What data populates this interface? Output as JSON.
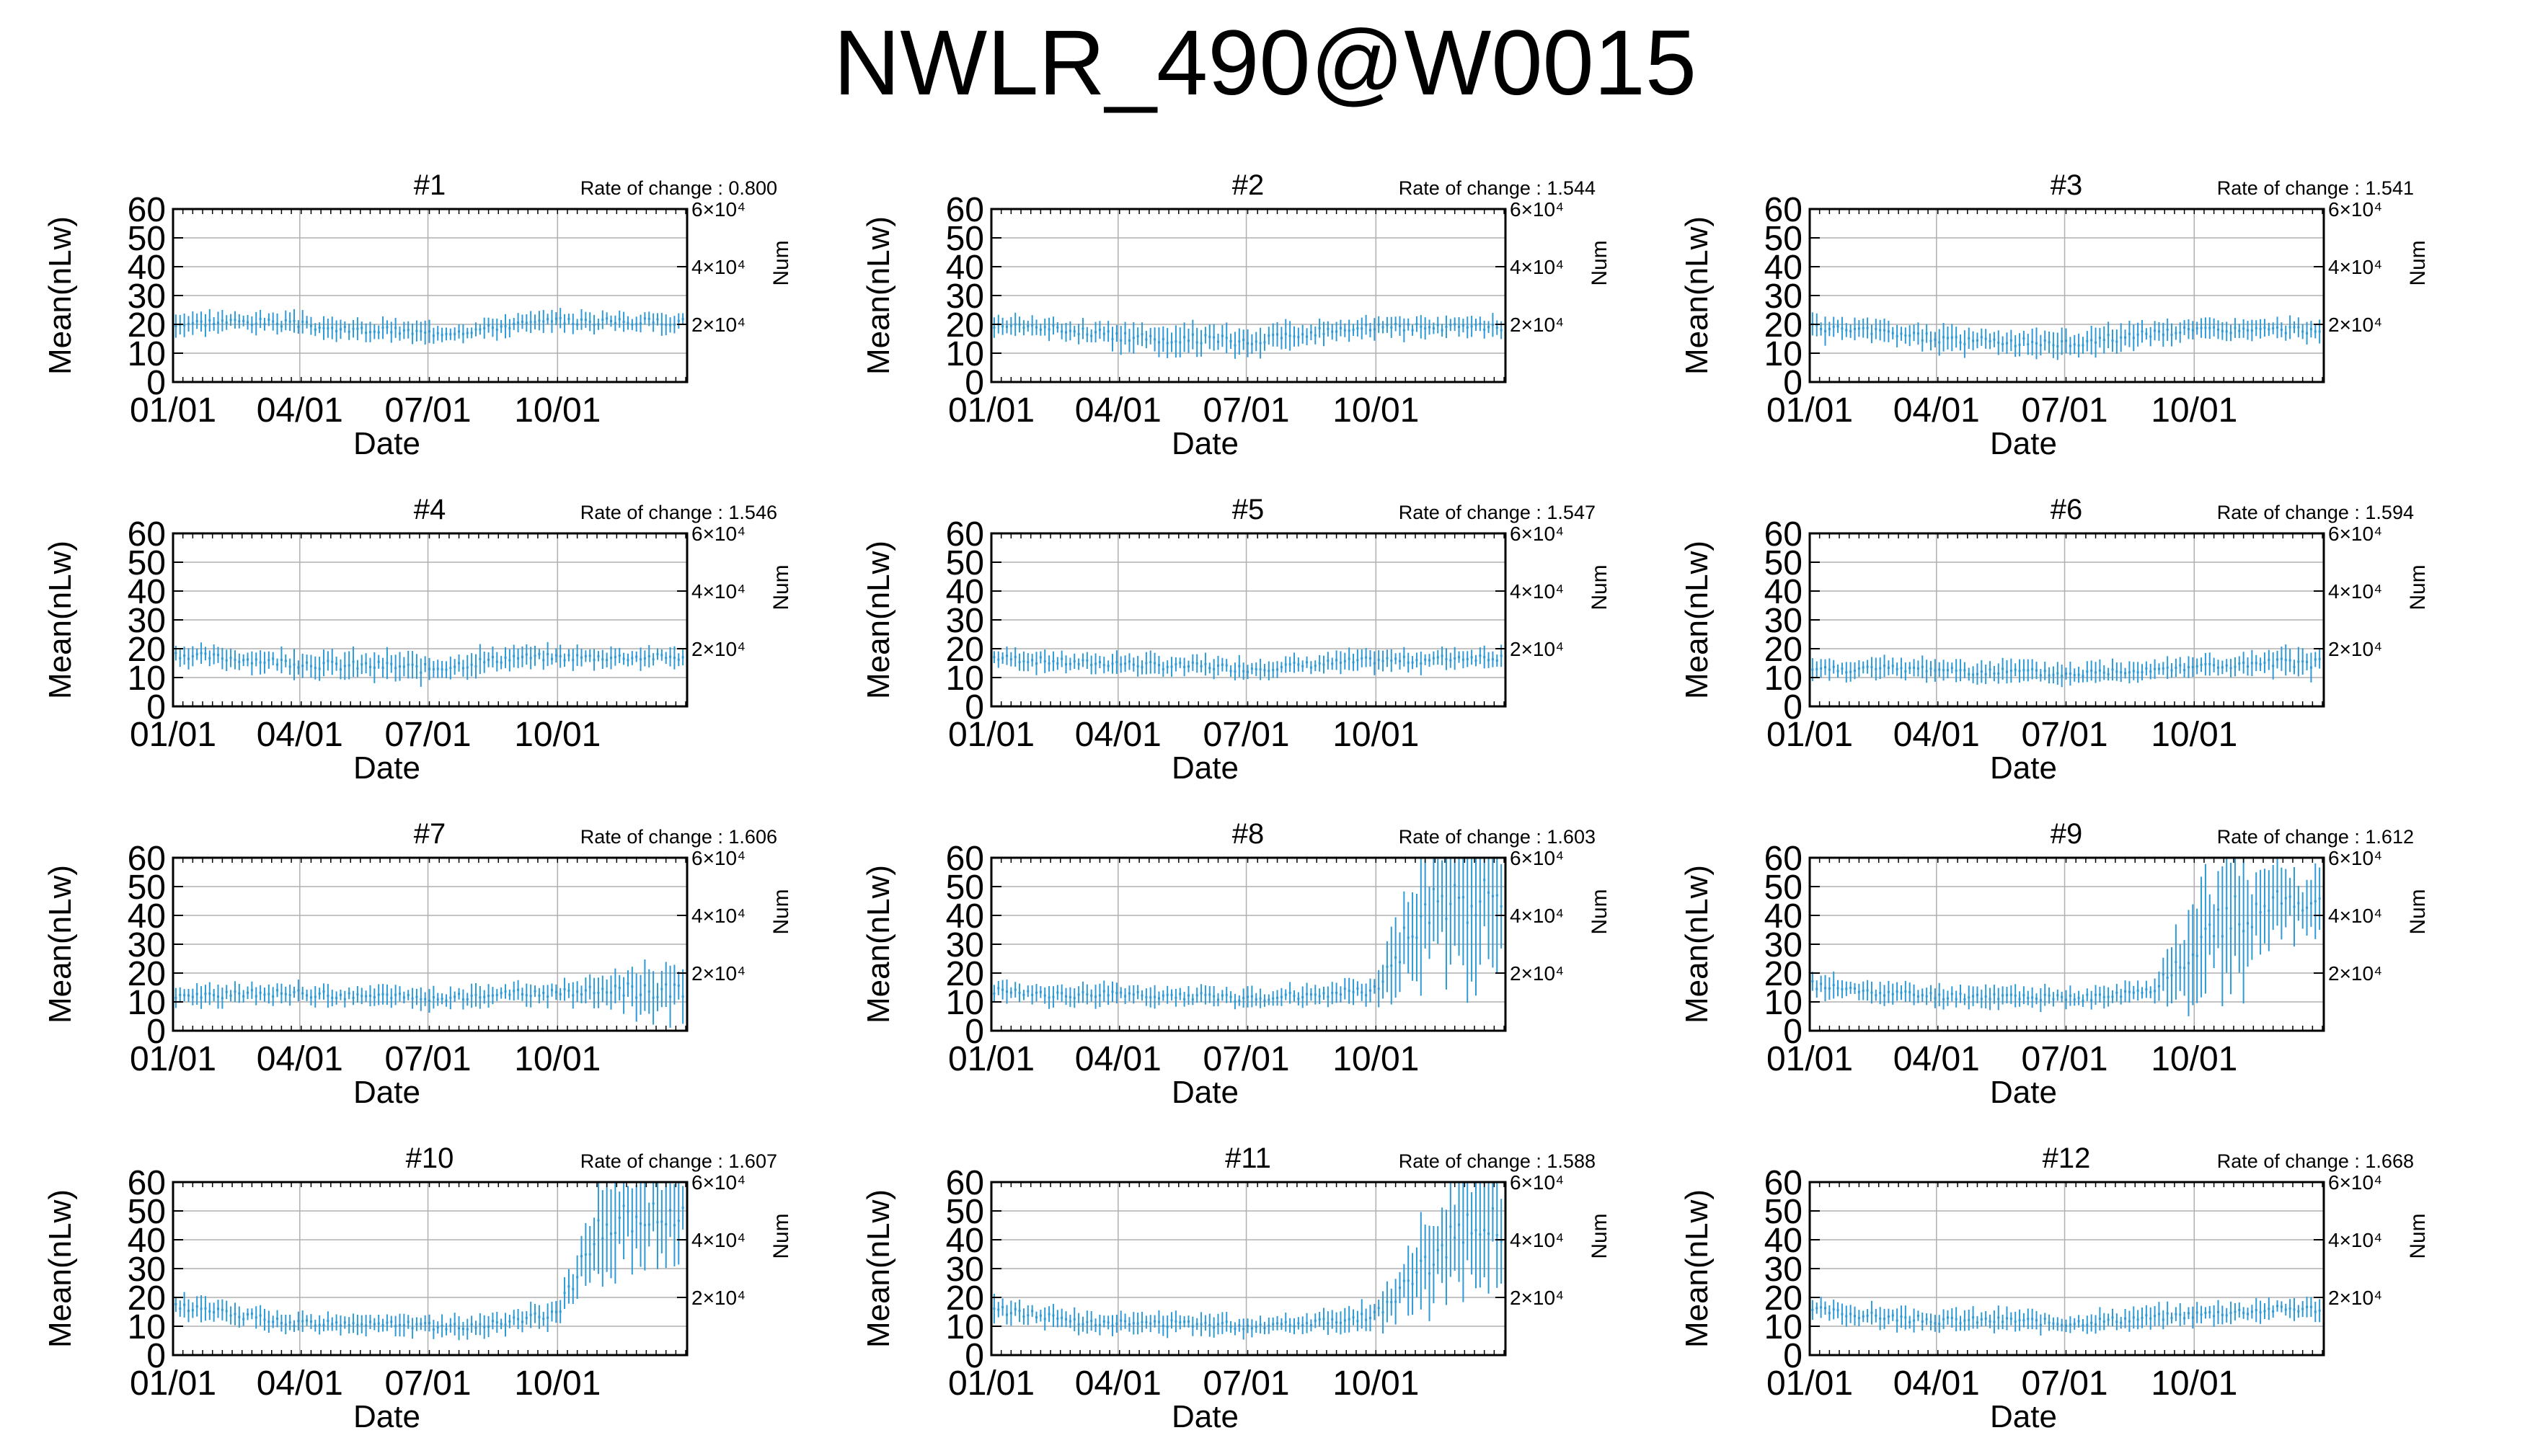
{
  "title": "NWLR_490@W0015",
  "colors": {
    "series": "#2e9ad6",
    "grid": "#b0b0b0",
    "axis": "#000000"
  },
  "chart_data": [
    {
      "type": "scatter",
      "title": "#1",
      "rate_of_change": "Rate of change : 0.800",
      "xlabel": "Date",
      "ylabel": "Mean(nLw)",
      "y2label": "Num",
      "xticks": [
        "01/01",
        "04/01",
        "07/01",
        "10/01"
      ],
      "ylim": [
        0,
        60
      ],
      "yticks": [
        0,
        10,
        20,
        30,
        40,
        50,
        60
      ],
      "y2ticks": [
        "2×10⁴",
        "4×10⁴",
        "6×10⁴"
      ],
      "grid": true,
      "x": [
        "01/01",
        "02/01",
        "03/01",
        "04/01",
        "05/01",
        "06/01",
        "07/01",
        "08/01",
        "09/01",
        "10/01",
        "11/01",
        "12/01"
      ],
      "values": [
        20,
        21,
        21,
        20,
        18,
        18,
        17,
        18,
        20,
        21,
        21,
        21
      ],
      "error": [
        3,
        3,
        3,
        3,
        3,
        3,
        3,
        3,
        3,
        3,
        3,
        3
      ]
    },
    {
      "type": "scatter",
      "title": "#2",
      "rate_of_change": "Rate of change : 1.544",
      "xlabel": "Date",
      "ylabel": "Mean(nLw)",
      "y2label": "Num",
      "xticks": [
        "01/01",
        "04/01",
        "07/01",
        "10/01"
      ],
      "ylim": [
        0,
        60
      ],
      "yticks": [
        0,
        10,
        20,
        30,
        40,
        50,
        60
      ],
      "y2ticks": [
        "2×10⁴",
        "4×10⁴",
        "6×10⁴"
      ],
      "grid": true,
      "x": [
        "01/01",
        "02/01",
        "03/01",
        "04/01",
        "05/01",
        "06/01",
        "07/01",
        "08/01",
        "09/01",
        "10/01",
        "11/01",
        "12/01"
      ],
      "values": [
        20,
        19,
        18,
        16,
        15,
        15,
        14,
        16,
        18,
        19,
        19,
        19
      ],
      "error": [
        3,
        3,
        3,
        4,
        4,
        4,
        4,
        4,
        3,
        3,
        3,
        3
      ]
    },
    {
      "type": "scatter",
      "title": "#3",
      "rate_of_change": "Rate of change : 1.541",
      "xlabel": "Date",
      "ylabel": "Mean(nLw)",
      "y2label": "Num",
      "xticks": [
        "01/01",
        "04/01",
        "07/01",
        "10/01"
      ],
      "ylim": [
        0,
        60
      ],
      "yticks": [
        0,
        10,
        20,
        30,
        40,
        50,
        60
      ],
      "y2ticks": [
        "2×10⁴",
        "4×10⁴",
        "6×10⁴"
      ],
      "grid": true,
      "x": [
        "01/01",
        "02/01",
        "03/01",
        "04/01",
        "05/01",
        "06/01",
        "07/01",
        "08/01",
        "09/01",
        "10/01",
        "11/01",
        "12/01"
      ],
      "values": [
        19,
        18,
        17,
        15,
        14,
        14,
        13,
        15,
        17,
        18,
        18,
        18
      ],
      "error": [
        4,
        3,
        3,
        4,
        4,
        4,
        4,
        4,
        3,
        3,
        3,
        3
      ]
    },
    {
      "type": "scatter",
      "title": "#4",
      "rate_of_change": "Rate of change : 1.546",
      "xlabel": "Date",
      "ylabel": "Mean(nLw)",
      "y2label": "Num",
      "xticks": [
        "01/01",
        "04/01",
        "07/01",
        "10/01"
      ],
      "ylim": [
        0,
        60
      ],
      "yticks": [
        0,
        10,
        20,
        30,
        40,
        50,
        60
      ],
      "y2ticks": [
        "2×10⁴",
        "4×10⁴",
        "6×10⁴"
      ],
      "grid": true,
      "x": [
        "01/01",
        "02/01",
        "03/01",
        "04/01",
        "05/01",
        "06/01",
        "07/01",
        "08/01",
        "09/01",
        "10/01",
        "11/01",
        "12/01"
      ],
      "values": [
        18,
        17,
        16,
        15,
        14,
        14,
        13,
        15,
        17,
        17,
        17,
        17
      ],
      "error": [
        3,
        3,
        3,
        4,
        4,
        4,
        4,
        4,
        3,
        3,
        3,
        3
      ]
    },
    {
      "type": "scatter",
      "title": "#5",
      "rate_of_change": "Rate of change : 1.547",
      "xlabel": "Date",
      "ylabel": "Mean(nLw)",
      "y2label": "Num",
      "xticks": [
        "01/01",
        "04/01",
        "07/01",
        "10/01"
      ],
      "ylim": [
        0,
        60
      ],
      "yticks": [
        0,
        10,
        20,
        30,
        40,
        50,
        60
      ],
      "y2ticks": [
        "2×10⁴",
        "4×10⁴",
        "6×10⁴"
      ],
      "grid": true,
      "x": [
        "01/01",
        "02/01",
        "03/01",
        "04/01",
        "05/01",
        "06/01",
        "07/01",
        "08/01",
        "09/01",
        "10/01",
        "11/01",
        "12/01"
      ],
      "values": [
        17,
        16,
        15,
        15,
        14,
        14,
        13,
        14,
        15,
        16,
        16,
        17
      ],
      "error": [
        3,
        3,
        3,
        3,
        3,
        3,
        3,
        3,
        3,
        3,
        3,
        3
      ]
    },
    {
      "type": "scatter",
      "title": "#6",
      "rate_of_change": "Rate of change : 1.594",
      "xlabel": "Date",
      "ylabel": "Mean(nLw)",
      "y2label": "Num",
      "xticks": [
        "01/01",
        "04/01",
        "07/01",
        "10/01"
      ],
      "ylim": [
        0,
        60
      ],
      "yticks": [
        0,
        10,
        20,
        30,
        40,
        50,
        60
      ],
      "y2ticks": [
        "2×10⁴",
        "4×10⁴",
        "6×10⁴"
      ],
      "grid": true,
      "x": [
        "01/01",
        "02/01",
        "03/01",
        "04/01",
        "05/01",
        "06/01",
        "07/01",
        "08/01",
        "09/01",
        "10/01",
        "11/01",
        "12/01"
      ],
      "values": [
        13,
        13,
        13,
        13,
        12,
        12,
        11,
        12,
        13,
        14,
        14,
        15
      ],
      "error": [
        3,
        3,
        3,
        3,
        3,
        3,
        3,
        3,
        3,
        3,
        3,
        4
      ]
    },
    {
      "type": "scatter",
      "title": "#7",
      "rate_of_change": "Rate of change : 1.606",
      "xlabel": "Date",
      "ylabel": "Mean(nLw)",
      "y2label": "Num",
      "xticks": [
        "01/01",
        "04/01",
        "07/01",
        "10/01"
      ],
      "ylim": [
        0,
        60
      ],
      "yticks": [
        0,
        10,
        20,
        30,
        40,
        50,
        60
      ],
      "y2ticks": [
        "2×10⁴",
        "4×10⁴",
        "6×10⁴"
      ],
      "grid": true,
      "x": [
        "01/01",
        "02/01",
        "03/01",
        "04/01",
        "05/01",
        "06/01",
        "07/01",
        "08/01",
        "09/01",
        "10/01",
        "11/01",
        "12/01"
      ],
      "values": [
        12,
        12,
        13,
        13,
        12,
        12,
        11,
        12,
        13,
        13,
        14,
        14
      ],
      "error": [
        3,
        3,
        3,
        3,
        3,
        3,
        3,
        3,
        3,
        3,
        4,
        8
      ]
    },
    {
      "type": "scatter",
      "title": "#8",
      "rate_of_change": "Rate of change : 1.603",
      "xlabel": "Date",
      "ylabel": "Mean(nLw)",
      "y2label": "Num",
      "xticks": [
        "01/01",
        "04/01",
        "07/01",
        "10/01"
      ],
      "ylim": [
        0,
        60
      ],
      "yticks": [
        0,
        10,
        20,
        30,
        40,
        50,
        60
      ],
      "y2ticks": [
        "2×10⁴",
        "4×10⁴",
        "6×10⁴"
      ],
      "grid": true,
      "x": [
        "01/01",
        "02/01",
        "03/01",
        "04/01",
        "05/01",
        "06/01",
        "07/01",
        "08/01",
        "09/01",
        "10/01",
        "11/01",
        "12/01"
      ],
      "values": [
        14,
        13,
        12,
        13,
        12,
        12,
        11,
        12,
        13,
        14,
        40,
        45
      ],
      "error": [
        3,
        3,
        3,
        3,
        3,
        3,
        3,
        3,
        3,
        4,
        20,
        20
      ]
    },
    {
      "type": "scatter",
      "title": "#9",
      "rate_of_change": "Rate of change : 1.612",
      "xlabel": "Date",
      "ylabel": "Mean(nLw)",
      "y2label": "Num",
      "xticks": [
        "01/01",
        "04/01",
        "07/01",
        "10/01"
      ],
      "ylim": [
        0,
        60
      ],
      "yticks": [
        0,
        10,
        20,
        30,
        40,
        50,
        60
      ],
      "y2ticks": [
        "2×10⁴",
        "4×10⁴",
        "6×10⁴"
      ],
      "grid": true,
      "x": [
        "01/01",
        "02/01",
        "03/01",
        "04/01",
        "05/01",
        "06/01",
        "07/01",
        "08/01",
        "09/01",
        "10/01",
        "11/01",
        "12/01"
      ],
      "values": [
        16,
        14,
        13,
        12,
        12,
        12,
        11,
        12,
        14,
        30,
        40,
        45
      ],
      "error": [
        4,
        3,
        3,
        3,
        3,
        3,
        3,
        3,
        3,
        15,
        20,
        10
      ]
    },
    {
      "type": "scatter",
      "title": "#10",
      "rate_of_change": "Rate of change : 1.607",
      "xlabel": "Date",
      "ylabel": "Mean(nLw)",
      "y2label": "Num",
      "xticks": [
        "01/01",
        "04/01",
        "07/01",
        "10/01"
      ],
      "ylim": [
        0,
        60
      ],
      "yticks": [
        0,
        10,
        20,
        30,
        40,
        50,
        60
      ],
      "y2ticks": [
        "2×10⁴",
        "4×10⁴",
        "6×10⁴"
      ],
      "grid": true,
      "x": [
        "01/01",
        "02/01",
        "03/01",
        "04/01",
        "05/01",
        "06/01",
        "07/01",
        "08/01",
        "09/01",
        "10/01",
        "11/01",
        "12/01"
      ],
      "values": [
        17,
        15,
        13,
        11,
        11,
        11,
        10,
        10,
        12,
        15,
        45,
        48
      ],
      "error": [
        4,
        3,
        3,
        3,
        3,
        3,
        3,
        3,
        3,
        4,
        15,
        12
      ]
    },
    {
      "type": "scatter",
      "title": "#11",
      "rate_of_change": "Rate of change : 1.588",
      "xlabel": "Date",
      "ylabel": "Mean(nLw)",
      "y2label": "Num",
      "xticks": [
        "01/01",
        "04/01",
        "07/01",
        "10/01"
      ],
      "ylim": [
        0,
        60
      ],
      "yticks": [
        0,
        10,
        20,
        30,
        40,
        50,
        60
      ],
      "y2ticks": [
        "2×10⁴",
        "4×10⁴",
        "6×10⁴"
      ],
      "grid": true,
      "x": [
        "01/01",
        "02/01",
        "03/01",
        "04/01",
        "05/01",
        "06/01",
        "07/01",
        "08/01",
        "09/01",
        "10/01",
        "11/01",
        "12/01"
      ],
      "values": [
        16,
        14,
        12,
        11,
        11,
        11,
        10,
        11,
        12,
        14,
        28,
        45
      ],
      "error": [
        4,
        3,
        3,
        3,
        3,
        3,
        3,
        3,
        3,
        4,
        12,
        15
      ]
    },
    {
      "type": "scatter",
      "title": "#12",
      "rate_of_change": "Rate of change : 1.668",
      "xlabel": "Date",
      "ylabel": "Mean(nLw)",
      "y2label": "Num",
      "xticks": [
        "01/01",
        "04/01",
        "07/01",
        "10/01"
      ],
      "ylim": [
        0,
        60
      ],
      "yticks": [
        0,
        10,
        20,
        30,
        40,
        50,
        60
      ],
      "y2ticks": [
        "2×10⁴",
        "4×10⁴",
        "6×10⁴"
      ],
      "grid": true,
      "x": [
        "01/01",
        "02/01",
        "03/01",
        "04/01",
        "05/01",
        "06/01",
        "07/01",
        "08/01",
        "09/01",
        "10/01",
        "11/01",
        "12/01"
      ],
      "values": [
        16,
        14,
        13,
        12,
        12,
        12,
        11,
        12,
        13,
        14,
        15,
        16
      ],
      "error": [
        3,
        3,
        3,
        3,
        3,
        3,
        3,
        3,
        3,
        3,
        3,
        3
      ]
    }
  ]
}
